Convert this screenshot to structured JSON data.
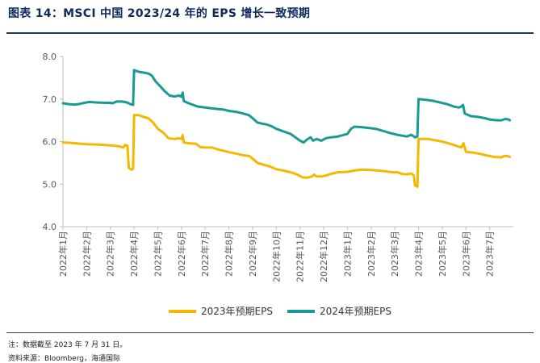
{
  "header": {
    "title": "图表 14：MSCI 中国 2023/24 年的 EPS 增长一致预期"
  },
  "footer": {
    "note": "注：数据截至 2023 年 7 月 31 日。",
    "source": "资料来源：Bloomberg，海通国际"
  },
  "colors": {
    "series_2023": "#f5b800",
    "series_2024": "#1a9a94",
    "axis": "#bfbfbf",
    "label": "#595959"
  },
  "chart_data": {
    "type": "line",
    "title": "MSCI 中国 2023/24 年的 EPS 增长一致预期",
    "xlabel": "",
    "ylabel": "",
    "ylim": [
      4.0,
      8.0
    ],
    "y_ticks": [
      "4.0",
      "5.0",
      "6.0",
      "7.0",
      "8.0"
    ],
    "x_range_months": [
      0,
      19
    ],
    "x_ticks": [
      "2022年1月",
      "2022年2月",
      "2022年3月",
      "2022年4月",
      "2022年5月",
      "2022年6月",
      "2022年7月",
      "2022年8月",
      "2022年9月",
      "2022年10月",
      "2022年11月",
      "2022年12月",
      "2023年1月",
      "2023年2月",
      "2023年3月",
      "2023年4月",
      "2023年5月",
      "2023年6月",
      "2023年7月"
    ],
    "series": [
      {
        "name": "2023年预期EPS",
        "color": "#f5b800",
        "points": [
          [
            0.0,
            5.98
          ],
          [
            0.35,
            5.97
          ],
          [
            0.7,
            5.95
          ],
          [
            1.0,
            5.94
          ],
          [
            1.5,
            5.93
          ],
          [
            2.0,
            5.91
          ],
          [
            2.35,
            5.89
          ],
          [
            2.55,
            5.86
          ],
          [
            2.62,
            5.92
          ],
          [
            2.72,
            5.9
          ],
          [
            2.78,
            5.38
          ],
          [
            2.9,
            5.34
          ],
          [
            2.96,
            5.36
          ],
          [
            3.0,
            6.62
          ],
          [
            3.2,
            6.62
          ],
          [
            3.4,
            6.58
          ],
          [
            3.6,
            6.55
          ],
          [
            3.8,
            6.45
          ],
          [
            4.0,
            6.3
          ],
          [
            4.25,
            6.2
          ],
          [
            4.45,
            6.08
          ],
          [
            4.7,
            6.06
          ],
          [
            4.9,
            6.08
          ],
          [
            5.0,
            6.06
          ],
          [
            5.05,
            6.15
          ],
          [
            5.1,
            5.98
          ],
          [
            5.3,
            5.96
          ],
          [
            5.6,
            5.95
          ],
          [
            5.8,
            5.87
          ],
          [
            6.0,
            5.86
          ],
          [
            6.3,
            5.86
          ],
          [
            6.5,
            5.82
          ],
          [
            6.8,
            5.78
          ],
          [
            7.0,
            5.75
          ],
          [
            7.3,
            5.72
          ],
          [
            7.6,
            5.68
          ],
          [
            7.85,
            5.66
          ],
          [
            8.0,
            5.6
          ],
          [
            8.2,
            5.5
          ],
          [
            8.5,
            5.45
          ],
          [
            8.7,
            5.42
          ],
          [
            9.0,
            5.35
          ],
          [
            9.3,
            5.32
          ],
          [
            9.6,
            5.28
          ],
          [
            9.9,
            5.22
          ],
          [
            10.1,
            5.16
          ],
          [
            10.3,
            5.15
          ],
          [
            10.5,
            5.18
          ],
          [
            10.6,
            5.22
          ],
          [
            10.7,
            5.18
          ],
          [
            10.9,
            5.18
          ],
          [
            11.1,
            5.2
          ],
          [
            11.3,
            5.24
          ],
          [
            11.6,
            5.28
          ],
          [
            12.0,
            5.29
          ],
          [
            12.3,
            5.32
          ],
          [
            12.6,
            5.34
          ],
          [
            13.0,
            5.33
          ],
          [
            13.3,
            5.32
          ],
          [
            13.6,
            5.3
          ],
          [
            13.9,
            5.28
          ],
          [
            14.1,
            5.28
          ],
          [
            14.3,
            5.24
          ],
          [
            14.5,
            5.23
          ],
          [
            14.7,
            5.25
          ],
          [
            14.8,
            5.2
          ],
          [
            14.85,
            4.97
          ],
          [
            14.95,
            4.94
          ],
          [
            15.0,
            6.06
          ],
          [
            15.4,
            6.06
          ],
          [
            15.7,
            6.03
          ],
          [
            16.0,
            6.0
          ],
          [
            16.3,
            5.95
          ],
          [
            16.6,
            5.9
          ],
          [
            16.8,
            5.86
          ],
          [
            16.9,
            5.96
          ],
          [
            17.0,
            5.76
          ],
          [
            17.3,
            5.74
          ],
          [
            17.6,
            5.71
          ],
          [
            17.9,
            5.67
          ],
          [
            18.2,
            5.64
          ],
          [
            18.4,
            5.63
          ],
          [
            18.5,
            5.63
          ],
          [
            18.6,
            5.66
          ],
          [
            18.75,
            5.66
          ],
          [
            18.85,
            5.64
          ]
        ]
      },
      {
        "name": "2024年预期EPS",
        "color": "#1a9a94",
        "points": [
          [
            0.0,
            6.9
          ],
          [
            0.25,
            6.88
          ],
          [
            0.5,
            6.87
          ],
          [
            0.75,
            6.89
          ],
          [
            0.9,
            6.91
          ],
          [
            1.1,
            6.93
          ],
          [
            1.4,
            6.92
          ],
          [
            1.8,
            6.91
          ],
          [
            2.0,
            6.91
          ],
          [
            2.1,
            6.9
          ],
          [
            2.25,
            6.94
          ],
          [
            2.5,
            6.94
          ],
          [
            2.7,
            6.92
          ],
          [
            2.85,
            6.88
          ],
          [
            2.96,
            6.86
          ],
          [
            3.0,
            7.68
          ],
          [
            3.2,
            7.64
          ],
          [
            3.4,
            7.62
          ],
          [
            3.6,
            7.6
          ],
          [
            3.75,
            7.55
          ],
          [
            3.9,
            7.42
          ],
          [
            4.1,
            7.3
          ],
          [
            4.3,
            7.18
          ],
          [
            4.5,
            7.08
          ],
          [
            4.7,
            7.06
          ],
          [
            4.9,
            7.08
          ],
          [
            5.0,
            7.05
          ],
          [
            5.05,
            7.15
          ],
          [
            5.1,
            6.95
          ],
          [
            5.3,
            6.9
          ],
          [
            5.5,
            6.86
          ],
          [
            5.7,
            6.82
          ],
          [
            6.0,
            6.8
          ],
          [
            6.3,
            6.78
          ],
          [
            6.6,
            6.76
          ],
          [
            6.8,
            6.75
          ],
          [
            7.0,
            6.72
          ],
          [
            7.3,
            6.7
          ],
          [
            7.6,
            6.66
          ],
          [
            7.85,
            6.62
          ],
          [
            8.0,
            6.55
          ],
          [
            8.2,
            6.45
          ],
          [
            8.4,
            6.42
          ],
          [
            8.6,
            6.4
          ],
          [
            8.8,
            6.36
          ],
          [
            9.0,
            6.3
          ],
          [
            9.2,
            6.26
          ],
          [
            9.4,
            6.22
          ],
          [
            9.6,
            6.18
          ],
          [
            9.8,
            6.1
          ],
          [
            10.0,
            6.02
          ],
          [
            10.15,
            5.98
          ],
          [
            10.3,
            6.05
          ],
          [
            10.45,
            6.1
          ],
          [
            10.55,
            6.02
          ],
          [
            10.7,
            6.06
          ],
          [
            10.9,
            6.02
          ],
          [
            11.1,
            6.08
          ],
          [
            11.3,
            6.1
          ],
          [
            11.6,
            6.12
          ],
          [
            11.8,
            6.15
          ],
          [
            12.0,
            6.18
          ],
          [
            12.15,
            6.3
          ],
          [
            12.3,
            6.35
          ],
          [
            12.6,
            6.34
          ],
          [
            12.9,
            6.32
          ],
          [
            13.2,
            6.3
          ],
          [
            13.5,
            6.25
          ],
          [
            13.8,
            6.2
          ],
          [
            14.1,
            6.16
          ],
          [
            14.3,
            6.14
          ],
          [
            14.5,
            6.12
          ],
          [
            14.7,
            6.16
          ],
          [
            14.85,
            6.1
          ],
          [
            14.95,
            6.12
          ],
          [
            15.0,
            7.0
          ],
          [
            15.3,
            6.98
          ],
          [
            15.6,
            6.96
          ],
          [
            15.9,
            6.92
          ],
          [
            16.2,
            6.88
          ],
          [
            16.5,
            6.82
          ],
          [
            16.7,
            6.8
          ],
          [
            16.8,
            6.82
          ],
          [
            16.88,
            6.86
          ],
          [
            16.95,
            6.66
          ],
          [
            17.2,
            6.6
          ],
          [
            17.5,
            6.58
          ],
          [
            17.8,
            6.55
          ],
          [
            18.0,
            6.52
          ],
          [
            18.3,
            6.5
          ],
          [
            18.5,
            6.5
          ],
          [
            18.65,
            6.53
          ],
          [
            18.8,
            6.52
          ],
          [
            18.85,
            6.5
          ]
        ]
      }
    ]
  }
}
